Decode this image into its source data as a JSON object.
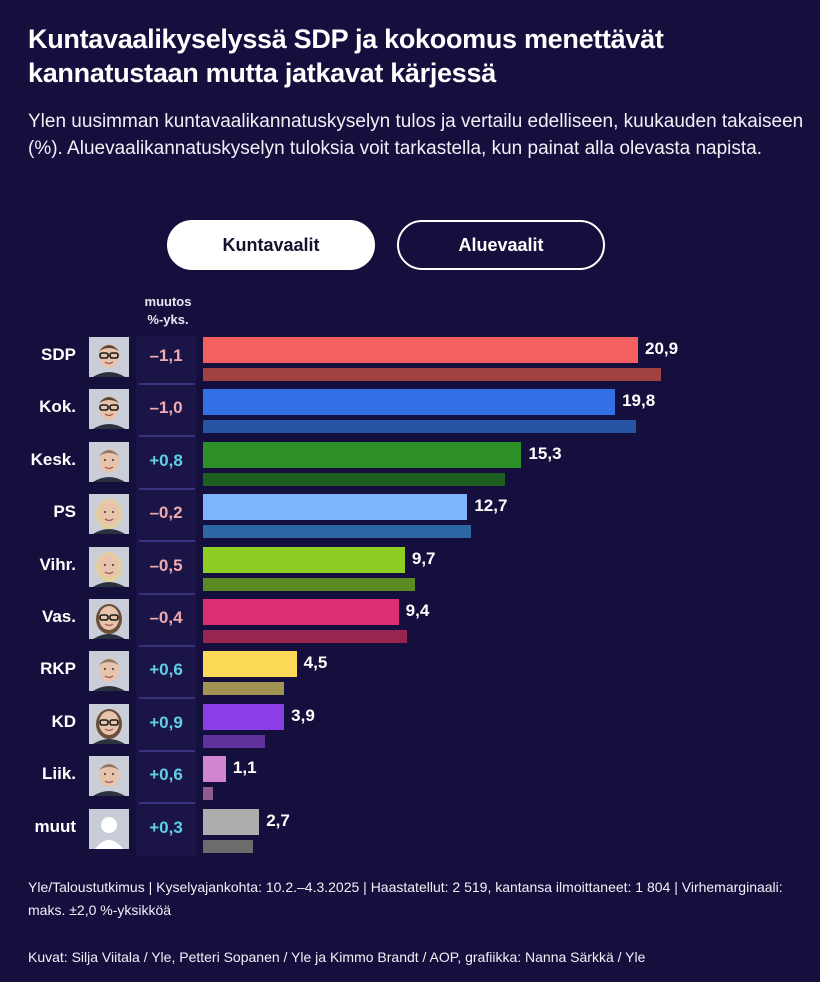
{
  "header": {
    "title": "Kuntavaalikyselyssä SDP ja kokoomus menettävät kannatustaan mutta jatkavat kärjessä",
    "subtitle": "Ylen uusimman kuntavaalikannatuskyselyn tulos ja vertailu edelliseen, kuukauden takaiseen (%). Aluevaalikannatuskyselyn tuloksia voit tarkastella, kun painat alla olevasta napista."
  },
  "tabs": [
    {
      "label": "Kuntavaalit",
      "active": true
    },
    {
      "label": "Aluevaalit",
      "active": false
    }
  ],
  "change_header": {
    "line1": "muutos",
    "line2": "%-yks."
  },
  "colors": {
    "background": "#150f3d",
    "positive_change": "#5fd0e6",
    "negative_change": "#f2aab0"
  },
  "chart_data": {
    "type": "bar",
    "orientation": "horizontal",
    "title": "Kuntavaalikyselyssä SDP ja kokoomus menettävät kannatustaan mutta jatkavat kärjessä",
    "xlabel": "",
    "ylabel": "",
    "xlim": [
      0,
      23
    ],
    "grid": false,
    "categories": [
      "SDP",
      "Kok.",
      "Kesk.",
      "PS",
      "Vihr.",
      "Vas.",
      "RKP",
      "KD",
      "Liik.",
      "muut"
    ],
    "series": [
      {
        "name": "current",
        "values": [
          20.9,
          19.8,
          15.3,
          12.7,
          9.7,
          9.4,
          4.5,
          3.9,
          1.1,
          2.7
        ]
      },
      {
        "name": "previous",
        "values": [
          22.0,
          20.8,
          14.5,
          12.9,
          10.2,
          9.8,
          3.9,
          3.0,
          0.5,
          2.4
        ]
      }
    ],
    "value_labels": [
      "20,9",
      "19,8",
      "15,3",
      "12,7",
      "9,7",
      "9,4",
      "4,5",
      "3,9",
      "1,1",
      "2,7"
    ],
    "changes": [
      "–1,1",
      "–1,0",
      "+0,8",
      "–0,2",
      "–0,5",
      "–0,4",
      "+0,6",
      "+0,9",
      "+0,6",
      "+0,3"
    ],
    "current_colors": [
      "#f45f5f",
      "#3370e5",
      "#2c8f28",
      "#7db4fd",
      "#8ccf22",
      "#dc2f72",
      "#fcd957",
      "#8c3ee6",
      "#d185d1",
      "#adadad"
    ],
    "previous_colors": [
      "#a24142",
      "#2653a4",
      "#1e5e21",
      "#2c66a3",
      "#5b8a24",
      "#96254f",
      "#a19452",
      "#5f319c",
      "#8f5c8c",
      "#6c6c6c"
    ],
    "avatars": [
      "man-glasses",
      "man-glasses",
      "man",
      "woman-blonde",
      "woman-blonde",
      "woman-glasses",
      "man",
      "woman-glasses",
      "man",
      "placeholder"
    ]
  },
  "footer": {
    "source": "Yle/Taloustutkimus | Kyselyajankohta: 10.2.–4.3.2025 | Haastatellut: 2 519, kantansa ilmoittaneet: 1 804 | Virhemarginaali: maks. ±2,0 %-yksikköä",
    "credits": "Kuvat: Silja Viitala / Yle, Petteri Sopanen / Yle ja Kimmo Brandt / AOP, grafiikka: Nanna Särkkä / Yle"
  }
}
